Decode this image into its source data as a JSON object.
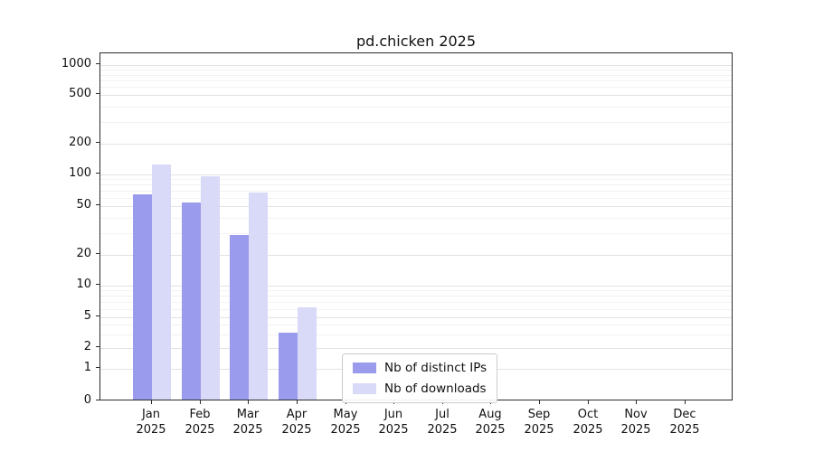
{
  "chart_data": {
    "type": "bar",
    "title": "pd.chicken 2025",
    "months": [
      "Jan",
      "Feb",
      "Mar",
      "Apr",
      "May",
      "Jun",
      "Jul",
      "Aug",
      "Sep",
      "Oct",
      "Nov",
      "Dec"
    ],
    "year": "2025",
    "series": [
      {
        "name": "Nb of distinct IPs",
        "color": "#9b9bee",
        "values": [
          62,
          52,
          28,
          3,
          0,
          0,
          0,
          0,
          0,
          0,
          0,
          0
        ]
      },
      {
        "name": "Nb of downloads",
        "color": "#d9d9f8",
        "values": [
          120,
          92,
          65,
          6,
          0,
          0,
          0,
          0,
          0,
          0,
          0,
          0
        ]
      }
    ],
    "y_ticks": [
      0,
      1,
      2,
      5,
      10,
      20,
      50,
      100,
      200,
      500,
      1000
    ],
    "yscale": "symlog",
    "ylim": [
      0,
      1000
    ],
    "grid": true,
    "legend_position": "bottom-center",
    "legend_entries": [
      "Nb of distinct IPs",
      "Nb of downloads"
    ]
  }
}
